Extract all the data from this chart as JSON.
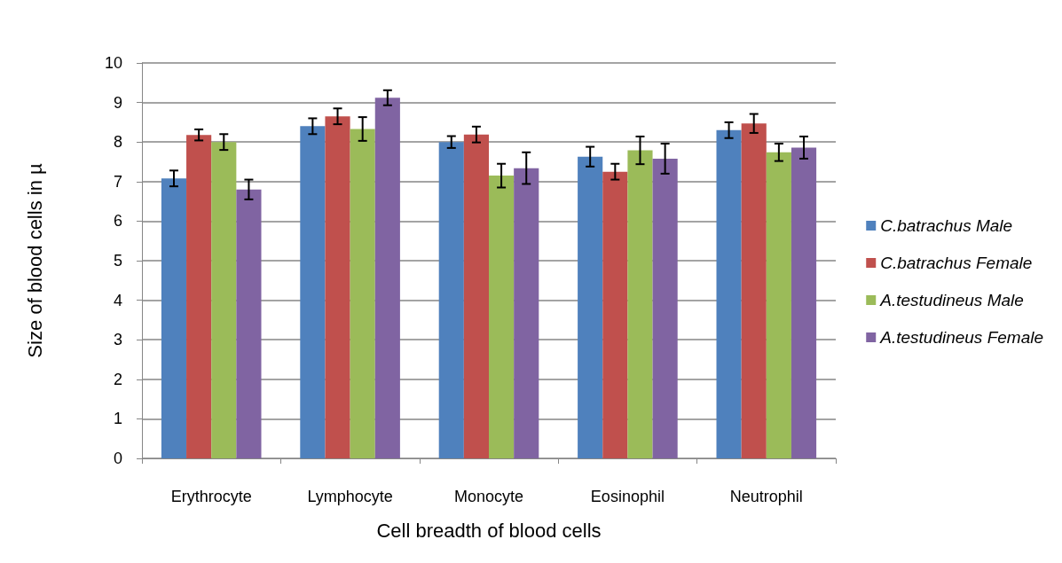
{
  "chart_data": {
    "type": "bar",
    "xlabel": "Cell breadth of blood cells",
    "ylabel": "Size of blood cells in µ",
    "categories": [
      "Erythrocyte",
      "Lymphocyte",
      "Monocyte",
      "Eosinophil",
      "Neutrophil"
    ],
    "series": [
      {
        "name": "C.batrachus Male",
        "color": "#4f81bd",
        "values": [
          7.08,
          8.4,
          8.0,
          7.63,
          8.3
        ],
        "errors": [
          0.2,
          0.2,
          0.15,
          0.25,
          0.2
        ]
      },
      {
        "name": "C.batrachus Female",
        "color": "#c0504d",
        "values": [
          8.18,
          8.65,
          8.19,
          7.25,
          8.47
        ],
        "errors": [
          0.14,
          0.2,
          0.2,
          0.2,
          0.24
        ]
      },
      {
        "name": "A.testudineus Male",
        "color": "#9bbb59",
        "values": [
          8.0,
          8.33,
          7.15,
          7.79,
          7.74
        ],
        "errors": [
          0.2,
          0.3,
          0.3,
          0.35,
          0.22
        ]
      },
      {
        "name": "A.testudineus Female",
        "color": "#8064a2",
        "values": [
          6.8,
          9.12,
          7.34,
          7.58,
          7.86
        ],
        "errors": [
          0.25,
          0.19,
          0.4,
          0.38,
          0.28
        ]
      }
    ],
    "ylim": [
      0,
      10
    ],
    "yticks": [
      0,
      1,
      2,
      3,
      4,
      5,
      6,
      7,
      8,
      9,
      10
    ],
    "grid": "y",
    "legend": "right"
  }
}
